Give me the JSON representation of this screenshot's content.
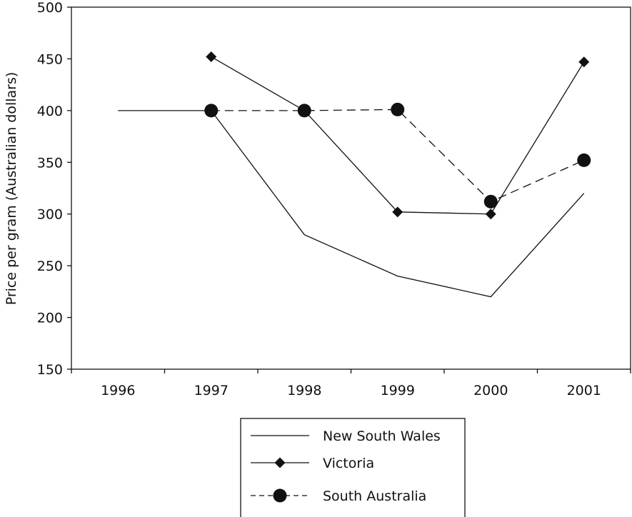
{
  "chart_data": {
    "type": "line",
    "title": "",
    "xlabel": "",
    "ylabel": "Price per gram (Australian dollars)",
    "categories": [
      "1996",
      "1997",
      "1998",
      "1999",
      "2000",
      "2001"
    ],
    "ylim": [
      150,
      500
    ],
    "yticks": [
      150,
      200,
      250,
      300,
      350,
      400,
      450,
      500
    ],
    "grid": false,
    "legend_position": "bottom-center",
    "series": [
      {
        "name": "New South Wales",
        "marker": "none",
        "dash": "solid",
        "color": "#111111",
        "values": [
          400,
          400,
          280,
          240,
          220,
          320
        ]
      },
      {
        "name": "Victoria",
        "marker": "diamond",
        "dash": "solid",
        "color": "#111111",
        "values": [
          null,
          452,
          400,
          302,
          300,
          447
        ]
      },
      {
        "name": "South Australia",
        "marker": "circle",
        "dash": "dashed",
        "color": "#111111",
        "values": [
          null,
          400,
          400,
          401,
          312,
          352
        ]
      }
    ]
  }
}
